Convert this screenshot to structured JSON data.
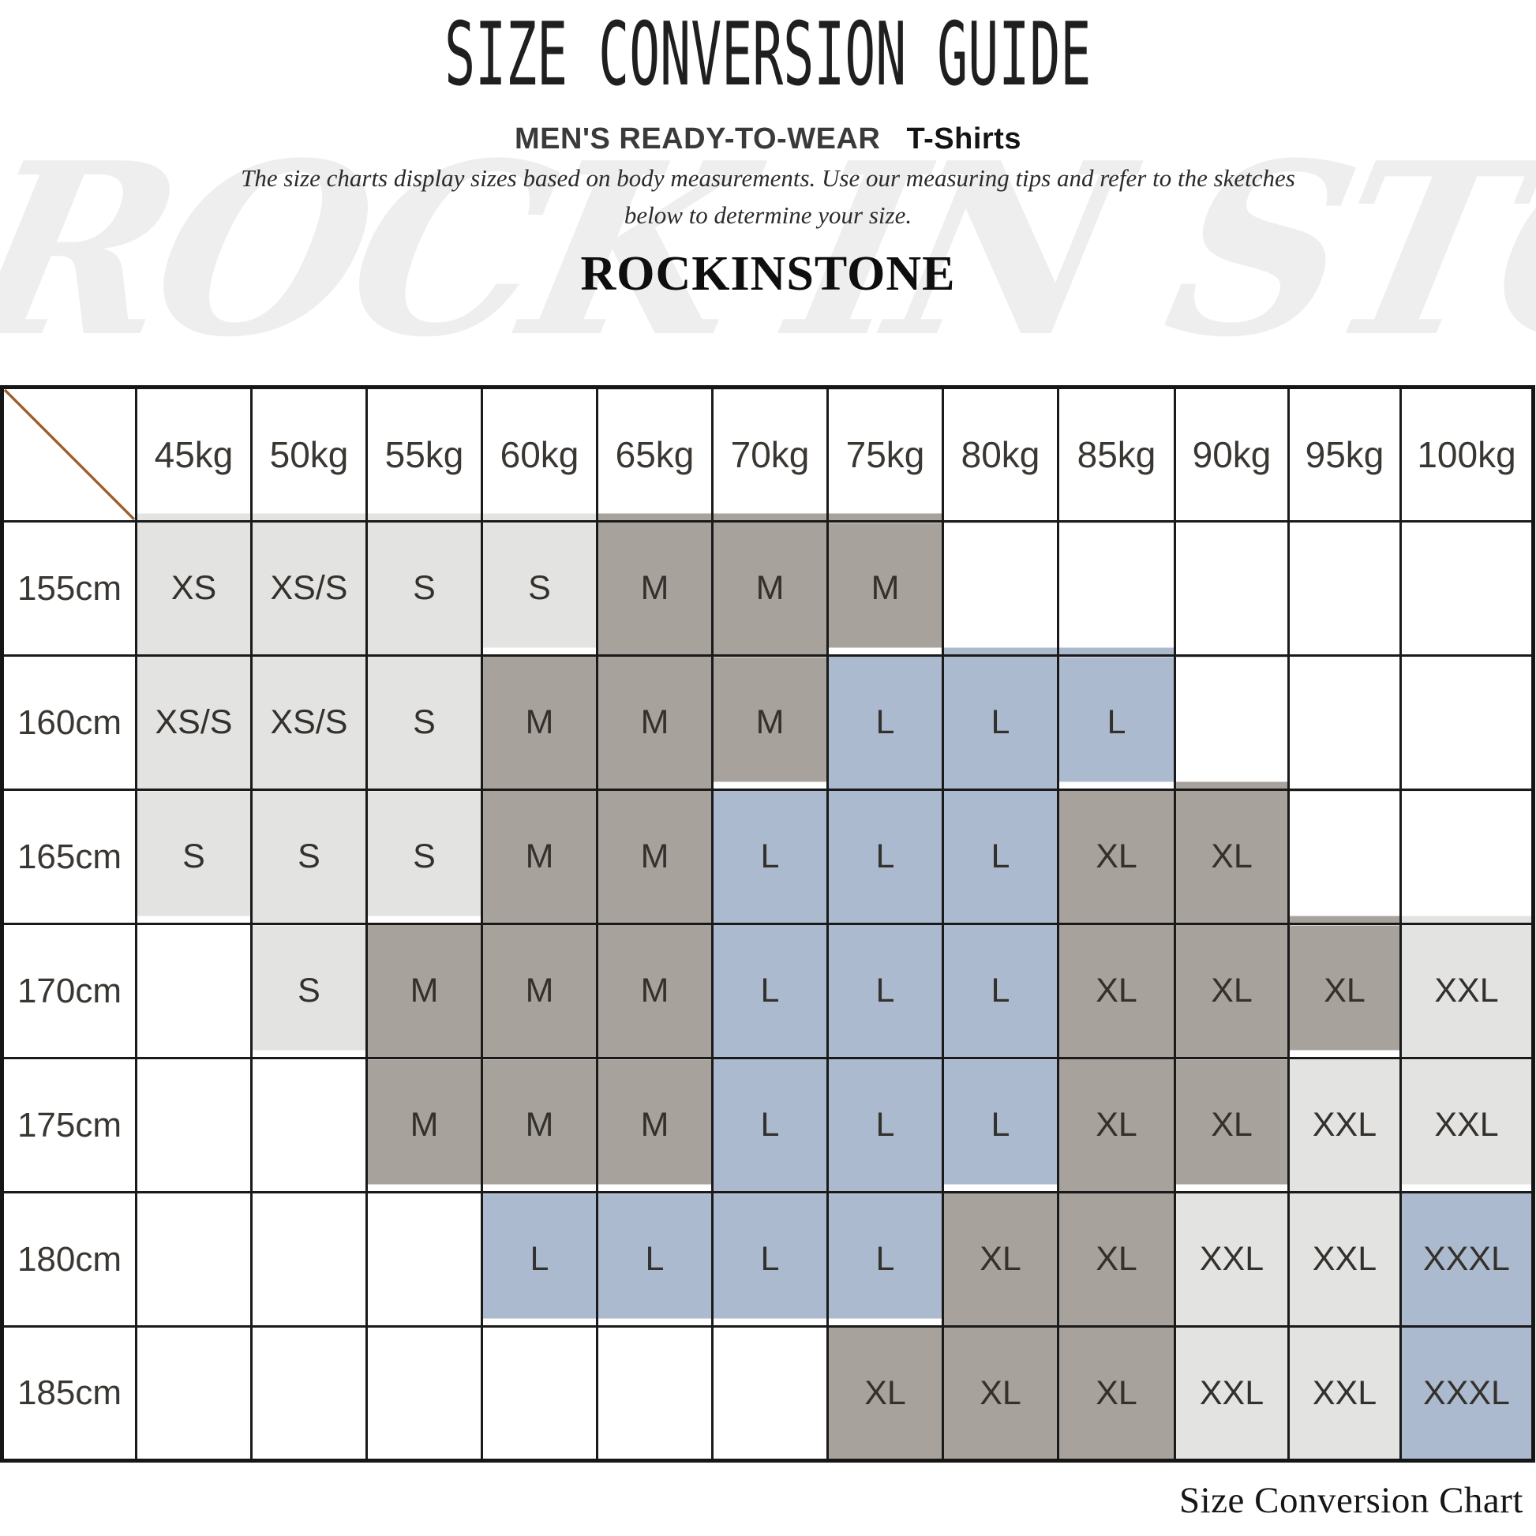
{
  "header": {
    "title": "SIZE CONVERSION GUIDE",
    "subtitle_category": "MEN'S READY-TO-WEAR",
    "subtitle_product": "T-Shirts",
    "description_line1": "The size charts display sizes based on body measurements.  Use our measuring tips and refer to the sketches",
    "description_line2": "below to determine your size.",
    "brand": "ROCKINSTONE"
  },
  "watermark_text": "ROCK IN STONE",
  "footer": {
    "caption": "Size Conversion Chart"
  },
  "colors": {
    "light_fill": "#e3e3e2",
    "dark_fill": "#a7a29c",
    "blue_fill": "#acbacf",
    "diagonal_line": "#9d5d2d",
    "border": "#1a1a1a"
  },
  "chart_data": {
    "type": "table",
    "title": "SIZE CONVERSION GUIDE",
    "x_axis_label": "weight",
    "y_axis_label": "height",
    "columns_weights": [
      "45kg",
      "50kg",
      "55kg",
      "60kg",
      "65kg",
      "70kg",
      "75kg",
      "80kg",
      "85kg",
      "90kg",
      "95kg",
      "100kg"
    ],
    "tone_legend": {
      "light": "light gray fill",
      "dark": "taupe gray fill",
      "blue": "blue gray fill",
      "": "no fill"
    },
    "rows": [
      {
        "height": "155cm",
        "cells": [
          {
            "size": "XS",
            "tone": "light"
          },
          {
            "size": "XS/S",
            "tone": "light"
          },
          {
            "size": "S",
            "tone": "light"
          },
          {
            "size": "S",
            "tone": "light"
          },
          {
            "size": "M",
            "tone": "dark"
          },
          {
            "size": "M",
            "tone": "dark"
          },
          {
            "size": "M",
            "tone": "dark"
          },
          {
            "size": "",
            "tone": ""
          },
          {
            "size": "",
            "tone": ""
          },
          {
            "size": "",
            "tone": ""
          },
          {
            "size": "",
            "tone": ""
          },
          {
            "size": "",
            "tone": ""
          }
        ]
      },
      {
        "height": "160cm",
        "cells": [
          {
            "size": "XS/S",
            "tone": "light"
          },
          {
            "size": "XS/S",
            "tone": "light"
          },
          {
            "size": "S",
            "tone": "light"
          },
          {
            "size": "M",
            "tone": "dark"
          },
          {
            "size": "M",
            "tone": "dark"
          },
          {
            "size": "M",
            "tone": "dark"
          },
          {
            "size": "L",
            "tone": "blue"
          },
          {
            "size": "L",
            "tone": "blue"
          },
          {
            "size": "L",
            "tone": "blue"
          },
          {
            "size": "",
            "tone": ""
          },
          {
            "size": "",
            "tone": ""
          },
          {
            "size": "",
            "tone": ""
          }
        ]
      },
      {
        "height": "165cm",
        "cells": [
          {
            "size": "S",
            "tone": "light"
          },
          {
            "size": "S",
            "tone": "light"
          },
          {
            "size": "S",
            "tone": "light"
          },
          {
            "size": "M",
            "tone": "dark"
          },
          {
            "size": "M",
            "tone": "dark"
          },
          {
            "size": "L",
            "tone": "blue"
          },
          {
            "size": "L",
            "tone": "blue"
          },
          {
            "size": "L",
            "tone": "blue"
          },
          {
            "size": "XL",
            "tone": "dark"
          },
          {
            "size": "XL",
            "tone": "dark"
          },
          {
            "size": "",
            "tone": ""
          },
          {
            "size": "",
            "tone": ""
          }
        ]
      },
      {
        "height": "170cm",
        "cells": [
          {
            "size": "",
            "tone": ""
          },
          {
            "size": "S",
            "tone": "light"
          },
          {
            "size": "M",
            "tone": "dark"
          },
          {
            "size": "M",
            "tone": "dark"
          },
          {
            "size": "M",
            "tone": "dark"
          },
          {
            "size": "L",
            "tone": "blue"
          },
          {
            "size": "L",
            "tone": "blue"
          },
          {
            "size": "L",
            "tone": "blue"
          },
          {
            "size": "XL",
            "tone": "dark"
          },
          {
            "size": "XL",
            "tone": "dark"
          },
          {
            "size": "XL",
            "tone": "dark"
          },
          {
            "size": "XXL",
            "tone": "light"
          }
        ]
      },
      {
        "height": "175cm",
        "cells": [
          {
            "size": "",
            "tone": ""
          },
          {
            "size": "",
            "tone": ""
          },
          {
            "size": "M",
            "tone": "dark"
          },
          {
            "size": "M",
            "tone": "dark"
          },
          {
            "size": "M",
            "tone": "dark"
          },
          {
            "size": "L",
            "tone": "blue"
          },
          {
            "size": "L",
            "tone": "blue"
          },
          {
            "size": "L",
            "tone": "blue"
          },
          {
            "size": "XL",
            "tone": "dark"
          },
          {
            "size": "XL",
            "tone": "dark"
          },
          {
            "size": "XXL",
            "tone": "light"
          },
          {
            "size": "XXL",
            "tone": "light"
          }
        ]
      },
      {
        "height": "180cm",
        "cells": [
          {
            "size": "",
            "tone": ""
          },
          {
            "size": "",
            "tone": ""
          },
          {
            "size": "",
            "tone": ""
          },
          {
            "size": "L",
            "tone": "blue"
          },
          {
            "size": "L",
            "tone": "blue"
          },
          {
            "size": "L",
            "tone": "blue"
          },
          {
            "size": "L",
            "tone": "blue"
          },
          {
            "size": "XL",
            "tone": "dark"
          },
          {
            "size": "XL",
            "tone": "dark"
          },
          {
            "size": "XXL",
            "tone": "light"
          },
          {
            "size": "XXL",
            "tone": "light"
          },
          {
            "size": "XXXL",
            "tone": "blue"
          }
        ]
      },
      {
        "height": "185cm",
        "cells": [
          {
            "size": "",
            "tone": ""
          },
          {
            "size": "",
            "tone": ""
          },
          {
            "size": "",
            "tone": ""
          },
          {
            "size": "",
            "tone": ""
          },
          {
            "size": "",
            "tone": ""
          },
          {
            "size": "",
            "tone": ""
          },
          {
            "size": "XL",
            "tone": "dark"
          },
          {
            "size": "XL",
            "tone": "dark"
          },
          {
            "size": "XL",
            "tone": "dark"
          },
          {
            "size": "XXL",
            "tone": "light"
          },
          {
            "size": "XXL",
            "tone": "light"
          },
          {
            "size": "XXXL",
            "tone": "blue"
          }
        ]
      }
    ]
  }
}
